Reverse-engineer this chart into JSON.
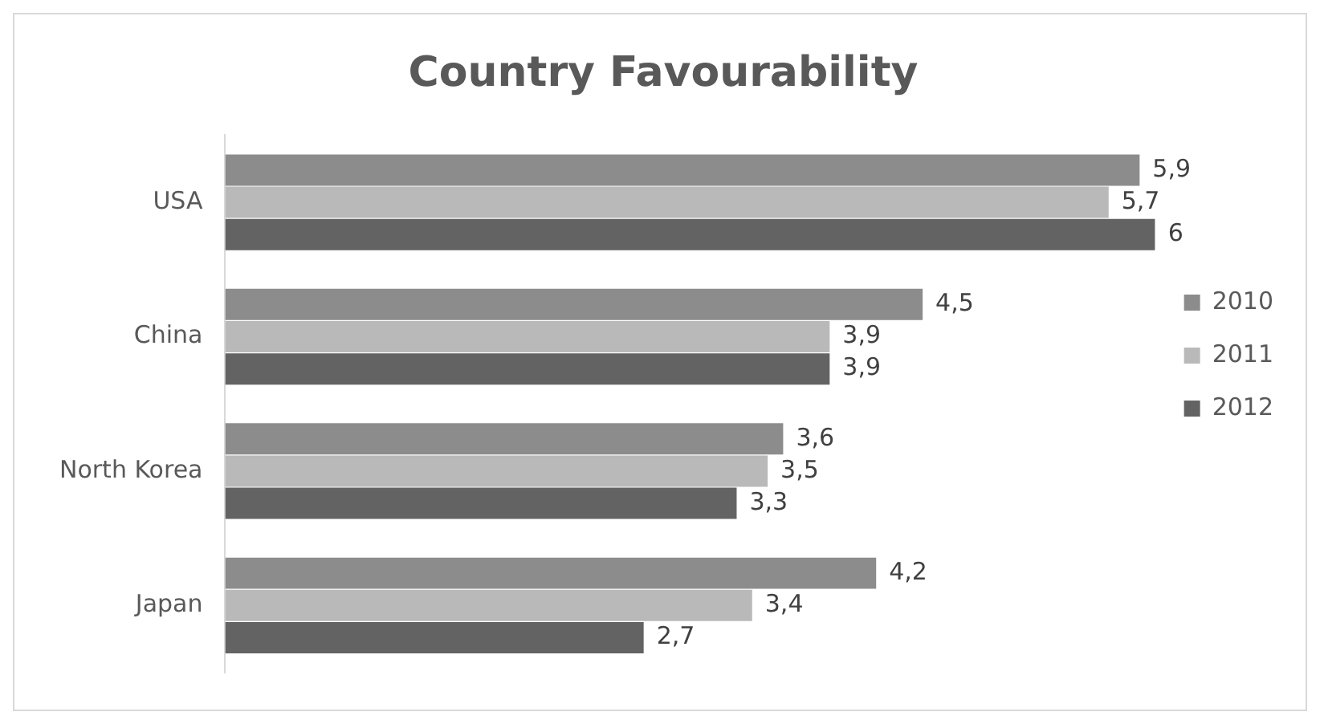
{
  "chart_data": {
    "type": "bar",
    "orientation": "horizontal",
    "title": "Country Favourability",
    "categories": [
      "USA",
      "China",
      "North Korea",
      "Japan"
    ],
    "series": [
      {
        "name": "2010",
        "color": "#8c8c8c",
        "values": [
          5.9,
          4.5,
          3.6,
          4.2
        ],
        "value_labels": [
          "5,9",
          "4,5",
          "3,6",
          "4,2"
        ]
      },
      {
        "name": "2011",
        "color": "#b9b9b9",
        "values": [
          5.7,
          3.9,
          3.5,
          3.4
        ],
        "value_labels": [
          "5,7",
          "3,9",
          "3,5",
          "3,4"
        ]
      },
      {
        "name": "2012",
        "color": "#636363",
        "values": [
          6,
          3.9,
          3.3,
          2.7
        ],
        "value_labels": [
          "6",
          "3,9",
          "3,3",
          "2,7"
        ]
      }
    ],
    "grid": false,
    "legend": "right"
  }
}
